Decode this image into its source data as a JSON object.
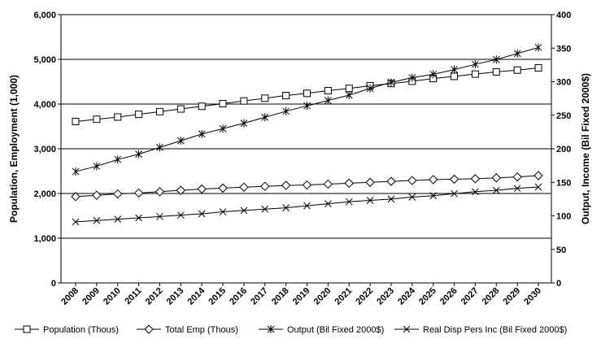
{
  "chart_data": {
    "type": "line",
    "x": [
      "2008",
      "2009",
      "2010",
      "2011",
      "2012",
      "2013",
      "2014",
      "2015",
      "2016",
      "2017",
      "2018",
      "2019",
      "2020",
      "2021",
      "2022",
      "2023",
      "2024",
      "2025",
      "2026",
      "2027",
      "2028",
      "2029",
      "2030"
    ],
    "ylabel": "Population, Employment (1,000)",
    "y2label": "Output, Income (Bil Fixed 2000$)",
    "ylim": [
      0,
      6000
    ],
    "y2lim": [
      0,
      400
    ],
    "yticks": [
      "0",
      "1,000",
      "2,000",
      "3,000",
      "4,000",
      "5,000",
      "6,000"
    ],
    "y2ticks": [
      "0",
      "50",
      "100",
      "150",
      "200",
      "250",
      "300",
      "350",
      "400"
    ],
    "grid": "horizontal",
    "legend_position": "bottom",
    "series": [
      {
        "name": "Population (Thous)",
        "axis": "left",
        "marker": "square",
        "values": [
          3610,
          3660,
          3710,
          3770,
          3830,
          3890,
          3950,
          4010,
          4070,
          4130,
          4190,
          4240,
          4300,
          4350,
          4410,
          4460,
          4510,
          4570,
          4620,
          4670,
          4720,
          4760,
          4810
        ]
      },
      {
        "name": "Total Emp (Thous)",
        "axis": "left",
        "marker": "diamond",
        "values": [
          1930,
          1960,
          1990,
          2010,
          2040,
          2070,
          2100,
          2120,
          2140,
          2160,
          2180,
          2190,
          2210,
          2230,
          2250,
          2270,
          2290,
          2310,
          2320,
          2330,
          2350,
          2370,
          2400
        ]
      },
      {
        "name": "Output (Bil Fixed 2000$)",
        "axis": "right",
        "marker": "star",
        "values": [
          166,
          174,
          184,
          192,
          202,
          212,
          222,
          230,
          238,
          247,
          256,
          264,
          272,
          280,
          290,
          299,
          306,
          311,
          318,
          326,
          333,
          342,
          351
        ]
      },
      {
        "name": "Real Disp Pers Inc (Bil Fixed 2000$)",
        "axis": "right",
        "marker": "x",
        "values": [
          91,
          93,
          95,
          97,
          99,
          101,
          103,
          106,
          108,
          110,
          112,
          115,
          118,
          121,
          123,
          125,
          128,
          130,
          133,
          136,
          138,
          141,
          143
        ]
      }
    ]
  }
}
